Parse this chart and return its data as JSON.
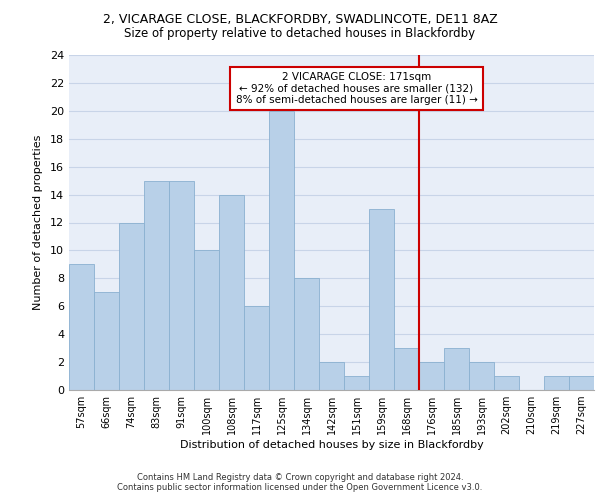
{
  "title_line1": "2, VICARAGE CLOSE, BLACKFORDBY, SWADLINCOTE, DE11 8AZ",
  "title_line2": "Size of property relative to detached houses in Blackfordby",
  "xlabel": "Distribution of detached houses by size in Blackfordby",
  "ylabel": "Number of detached properties",
  "categories": [
    "57sqm",
    "66sqm",
    "74sqm",
    "83sqm",
    "91sqm",
    "100sqm",
    "108sqm",
    "117sqm",
    "125sqm",
    "134sqm",
    "142sqm",
    "151sqm",
    "159sqm",
    "168sqm",
    "176sqm",
    "185sqm",
    "193sqm",
    "202sqm",
    "210sqm",
    "219sqm",
    "227sqm"
  ],
  "values": [
    9,
    7,
    12,
    15,
    15,
    10,
    14,
    6,
    20,
    8,
    2,
    1,
    13,
    3,
    2,
    3,
    2,
    1,
    0,
    1,
    1
  ],
  "bar_color": "#b8d0e8",
  "bar_edge_color": "#8ab0d0",
  "grid_color": "#c8d4e8",
  "background_color": "#e8eef8",
  "vline_x": 13.5,
  "vline_color": "#cc0000",
  "annotation_text": "2 VICARAGE CLOSE: 171sqm\n← 92% of detached houses are smaller (132)\n8% of semi-detached houses are larger (11) →",
  "annotation_box_color": "#ffffff",
  "annotation_box_edge": "#cc0000",
  "footer_line1": "Contains HM Land Registry data © Crown copyright and database right 2024.",
  "footer_line2": "Contains public sector information licensed under the Open Government Licence v3.0.",
  "ylim": [
    0,
    24
  ],
  "yticks": [
    0,
    2,
    4,
    6,
    8,
    10,
    12,
    14,
    16,
    18,
    20,
    22,
    24
  ],
  "title1_fontsize": 9,
  "title2_fontsize": 8.5,
  "annot_fontsize": 7.5,
  "xlabel_fontsize": 8,
  "ylabel_fontsize": 8,
  "xtick_fontsize": 7,
  "ytick_fontsize": 8
}
